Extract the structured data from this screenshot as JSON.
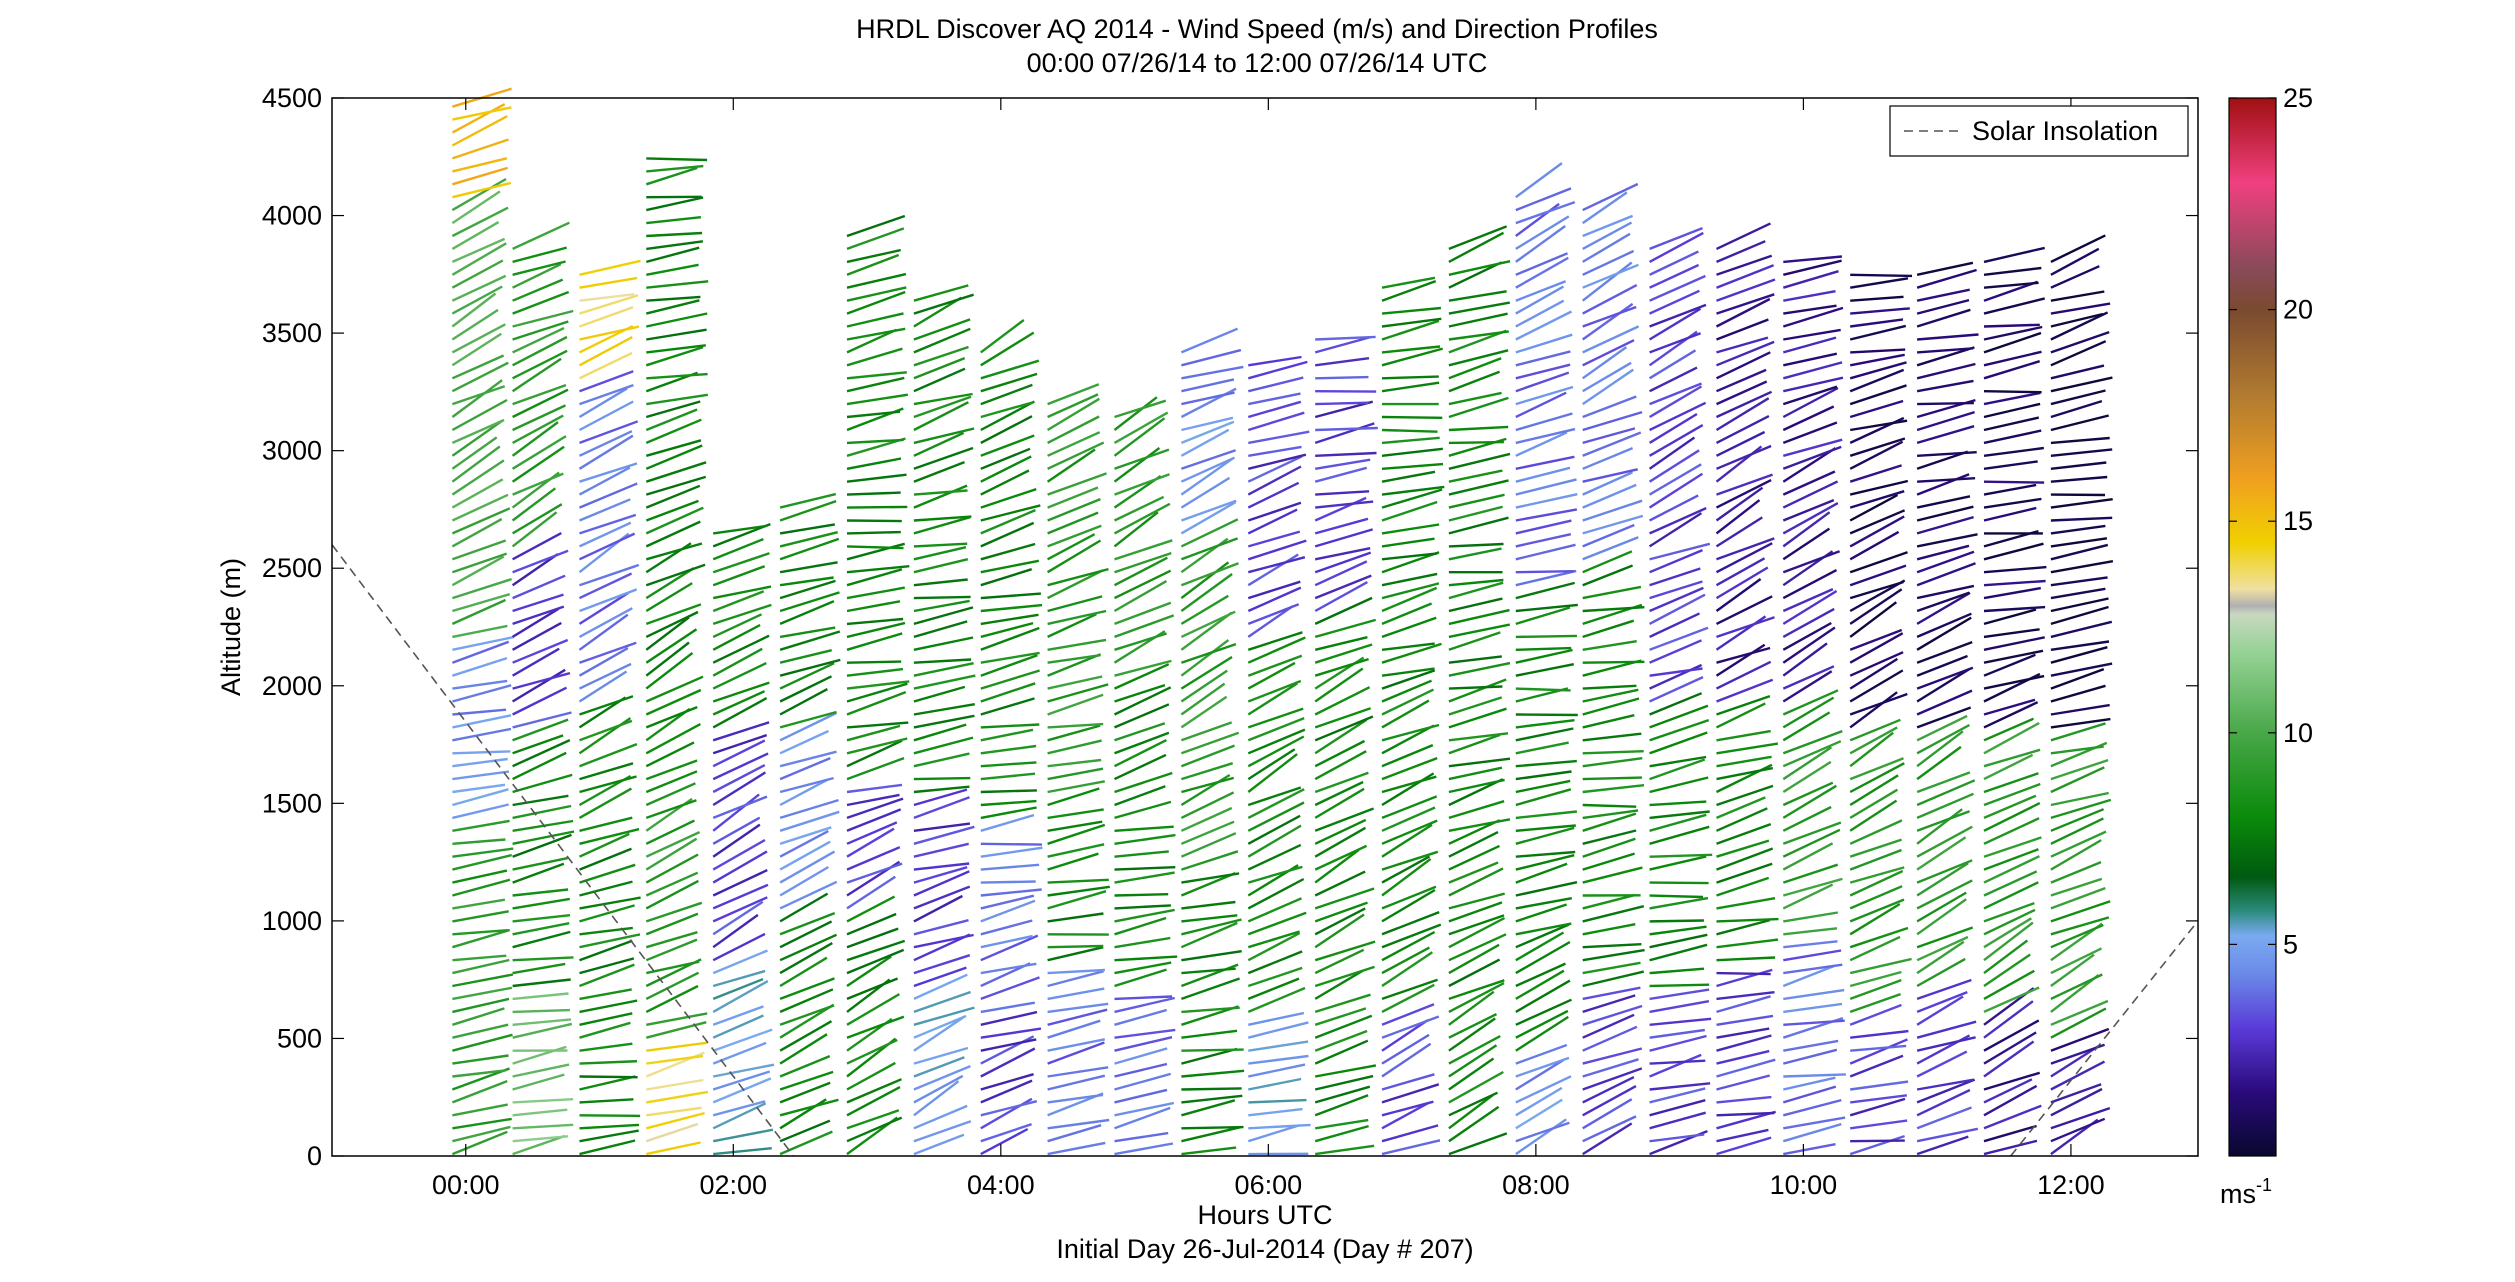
{
  "chart_data": {
    "type": "scatter",
    "title": "HRDL Discover AQ 2014 - Wind Speed (m/s) and Direction Profiles",
    "subtitle": "00:00 07/26/14 to 12:00 07/26/14  UTC",
    "xlabel": "Hours UTC",
    "xlabel2": "Initial Day 26-Jul-2014 (Day # 207)",
    "ylabel": "Altitude (m)",
    "xlim": [
      -1.0,
      12.95
    ],
    "ylim": [
      0,
      4500
    ],
    "x_ticks": [
      {
        "value": 0,
        "label": "00:00"
      },
      {
        "value": 2,
        "label": "02:00"
      },
      {
        "value": 4,
        "label": "04:00"
      },
      {
        "value": 6,
        "label": "06:00"
      },
      {
        "value": 8,
        "label": "08:00"
      },
      {
        "value": 10,
        "label": "10:00"
      },
      {
        "value": 12,
        "label": "12:00"
      }
    ],
    "y_ticks": [
      {
        "value": 0,
        "label": "0"
      },
      {
        "value": 500,
        "label": "500"
      },
      {
        "value": 1000,
        "label": "1000"
      },
      {
        "value": 1500,
        "label": "1500"
      },
      {
        "value": 2000,
        "label": "2000"
      },
      {
        "value": 2500,
        "label": "2500"
      },
      {
        "value": 3000,
        "label": "3000"
      },
      {
        "value": 3500,
        "label": "3500"
      },
      {
        "value": 4000,
        "label": "4000"
      },
      {
        "value": 4500,
        "label": "4500"
      }
    ],
    "grid": false,
    "legend": {
      "position": "top-right",
      "entries": [
        {
          "label": "Solar Insolation",
          "style": "dashed",
          "color": "#555555"
        }
      ]
    },
    "colorbar": {
      "min": 0,
      "max": 25,
      "units": "ms",
      "units_exponent": "-1",
      "ticks": [
        {
          "value": 5,
          "label": "5"
        },
        {
          "value": 10,
          "label": "10"
        },
        {
          "value": 15,
          "label": "15"
        },
        {
          "value": 20,
          "label": "20"
        },
        {
          "value": 25,
          "label": "25"
        }
      ],
      "stops": [
        {
          "v": 0,
          "c": "#08082e"
        },
        {
          "v": 1.5,
          "c": "#2a0a7a"
        },
        {
          "v": 3,
          "c": "#5a3ad8"
        },
        {
          "v": 4.3,
          "c": "#6a8ae8"
        },
        {
          "v": 5.2,
          "c": "#7aaaf0"
        },
        {
          "v": 5.8,
          "c": "#2a8a7a"
        },
        {
          "v": 6.6,
          "c": "#005a10"
        },
        {
          "v": 8,
          "c": "#0a8a0a"
        },
        {
          "v": 10,
          "c": "#48a848"
        },
        {
          "v": 12,
          "c": "#9ad49a"
        },
        {
          "v": 12.8,
          "c": "#c8d8c0"
        },
        {
          "v": 13.0,
          "c": "#b0b0b0"
        },
        {
          "v": 13.4,
          "c": "#f0e0a0"
        },
        {
          "v": 14.5,
          "c": "#f0d000"
        },
        {
          "v": 16,
          "c": "#f0a020"
        },
        {
          "v": 18,
          "c": "#b07a30"
        },
        {
          "v": 20,
          "c": "#7a4a30"
        },
        {
          "v": 21,
          "c": "#8a4a5a"
        },
        {
          "v": 23,
          "c": "#f04080"
        },
        {
          "v": 25,
          "c": "#a01010"
        }
      ]
    },
    "profiles_note": "Vertical profiles of wind barbs every ~30 min; colour = wind speed (m/s), orientation = wind direction.",
    "profiles": [
      {
        "t": -0.1,
        "top": 4470,
        "bands": [
          [
            0,
            1400,
            9
          ],
          [
            1400,
            2200,
            4.5
          ],
          [
            2200,
            4050,
            10
          ],
          [
            4050,
            4470,
            15
          ]
        ]
      },
      {
        "t": 0.35,
        "top": 3900,
        "bands": [
          [
            0,
            700,
            11
          ],
          [
            700,
            1800,
            8
          ],
          [
            1800,
            2550,
            3
          ],
          [
            2550,
            3900,
            9
          ]
        ]
      },
      {
        "t": 0.85,
        "top": 3800,
        "bands": [
          [
            0,
            900,
            8
          ],
          [
            900,
            1900,
            8
          ],
          [
            1900,
            3300,
            4
          ],
          [
            3300,
            3800,
            14
          ]
        ]
      },
      {
        "t": 1.35,
        "top": 4280,
        "bands": [
          [
            0,
            500,
            14
          ],
          [
            500,
            1500,
            9
          ],
          [
            1500,
            3000,
            8
          ],
          [
            3000,
            4280,
            8
          ]
        ]
      },
      {
        "t": 1.85,
        "top": 2700,
        "bands": [
          [
            0,
            800,
            5
          ],
          [
            800,
            1800,
            3
          ],
          [
            1800,
            2700,
            8
          ]
        ]
      },
      {
        "t": 2.35,
        "top": 2800,
        "bands": [
          [
            0,
            1000,
            8
          ],
          [
            1000,
            1800,
            4.5
          ],
          [
            1800,
            2800,
            8
          ]
        ]
      },
      {
        "t": 2.85,
        "top": 3950,
        "bands": [
          [
            0,
            1000,
            8
          ],
          [
            1000,
            1600,
            3
          ],
          [
            1600,
            3950,
            8
          ]
        ]
      },
      {
        "t": 3.35,
        "top": 3650,
        "bands": [
          [
            0,
            700,
            5
          ],
          [
            700,
            1500,
            3
          ],
          [
            1500,
            3650,
            8
          ]
        ]
      },
      {
        "t": 3.85,
        "top": 3450,
        "bands": [
          [
            0,
            600,
            3
          ],
          [
            600,
            1400,
            4
          ],
          [
            1400,
            3450,
            8
          ]
        ]
      },
      {
        "t": 4.35,
        "top": 3250,
        "bands": [
          [
            0,
            800,
            4
          ],
          [
            800,
            1500,
            8
          ],
          [
            1500,
            3250,
            9
          ]
        ]
      },
      {
        "t": 4.85,
        "top": 3150,
        "bands": [
          [
            0,
            700,
            4
          ],
          [
            700,
            2000,
            8
          ],
          [
            2000,
            3150,
            9
          ]
        ]
      },
      {
        "t": 5.35,
        "top": 3420,
        "bands": [
          [
            0,
            1200,
            8
          ],
          [
            1200,
            2600,
            9
          ],
          [
            2600,
            3420,
            4.5
          ]
        ]
      },
      {
        "t": 5.85,
        "top": 3400,
        "bands": [
          [
            0,
            600,
            5
          ],
          [
            600,
            2200,
            8
          ],
          [
            2200,
            3400,
            3
          ]
        ]
      },
      {
        "t": 6.35,
        "top": 3480,
        "bands": [
          [
            0,
            500,
            8
          ],
          [
            500,
            2300,
            8
          ],
          [
            2300,
            3480,
            3
          ]
        ]
      },
      {
        "t": 6.85,
        "top": 3700,
        "bands": [
          [
            0,
            600,
            3
          ],
          [
            600,
            2300,
            8
          ],
          [
            2300,
            3700,
            8
          ]
        ]
      },
      {
        "t": 7.35,
        "top": 3900,
        "bands": [
          [
            0,
            500,
            8
          ],
          [
            500,
            3900,
            8
          ]
        ]
      },
      {
        "t": 7.85,
        "top": 4100,
        "bands": [
          [
            0,
            400,
            4.5
          ],
          [
            400,
            2400,
            8
          ],
          [
            2400,
            4100,
            4
          ]
        ]
      },
      {
        "t": 8.35,
        "top": 4050,
        "bands": [
          [
            0,
            700,
            3
          ],
          [
            700,
            2500,
            8
          ],
          [
            2500,
            4050,
            4
          ]
        ]
      },
      {
        "t": 8.85,
        "top": 3900,
        "bands": [
          [
            0,
            700,
            3
          ],
          [
            700,
            1900,
            8
          ],
          [
            1900,
            3900,
            3
          ]
        ]
      },
      {
        "t": 9.35,
        "top": 3900,
        "bands": [
          [
            0,
            800,
            3
          ],
          [
            800,
            1900,
            8
          ],
          [
            1900,
            3900,
            2
          ]
        ]
      },
      {
        "t": 9.85,
        "top": 3850,
        "bands": [
          [
            0,
            900,
            4
          ],
          [
            900,
            1900,
            9
          ],
          [
            1900,
            3850,
            2
          ]
        ]
      },
      {
        "t": 10.35,
        "top": 3800,
        "bands": [
          [
            0,
            600,
            3
          ],
          [
            600,
            1800,
            9
          ],
          [
            1800,
            3800,
            1
          ]
        ]
      },
      {
        "t": 10.85,
        "top": 3800,
        "bands": [
          [
            0,
            700,
            3
          ],
          [
            700,
            1800,
            9
          ],
          [
            1800,
            3800,
            1
          ]
        ]
      },
      {
        "t": 11.35,
        "top": 3850,
        "bands": [
          [
            0,
            600,
            2
          ],
          [
            600,
            1800,
            9
          ],
          [
            1800,
            3850,
            1
          ]
        ]
      },
      {
        "t": 11.85,
        "top": 3850,
        "bands": [
          [
            0,
            500,
            2
          ],
          [
            500,
            1800,
            9
          ],
          [
            1800,
            3850,
            0.5
          ]
        ]
      }
    ],
    "solar_insolation": [
      {
        "t": -1.0,
        "alt": 2600
      },
      {
        "t": 2.45,
        "alt": 0
      },
      {
        "t": 11.55,
        "alt": 0
      },
      {
        "t": 12.95,
        "alt": 1000
      }
    ]
  }
}
